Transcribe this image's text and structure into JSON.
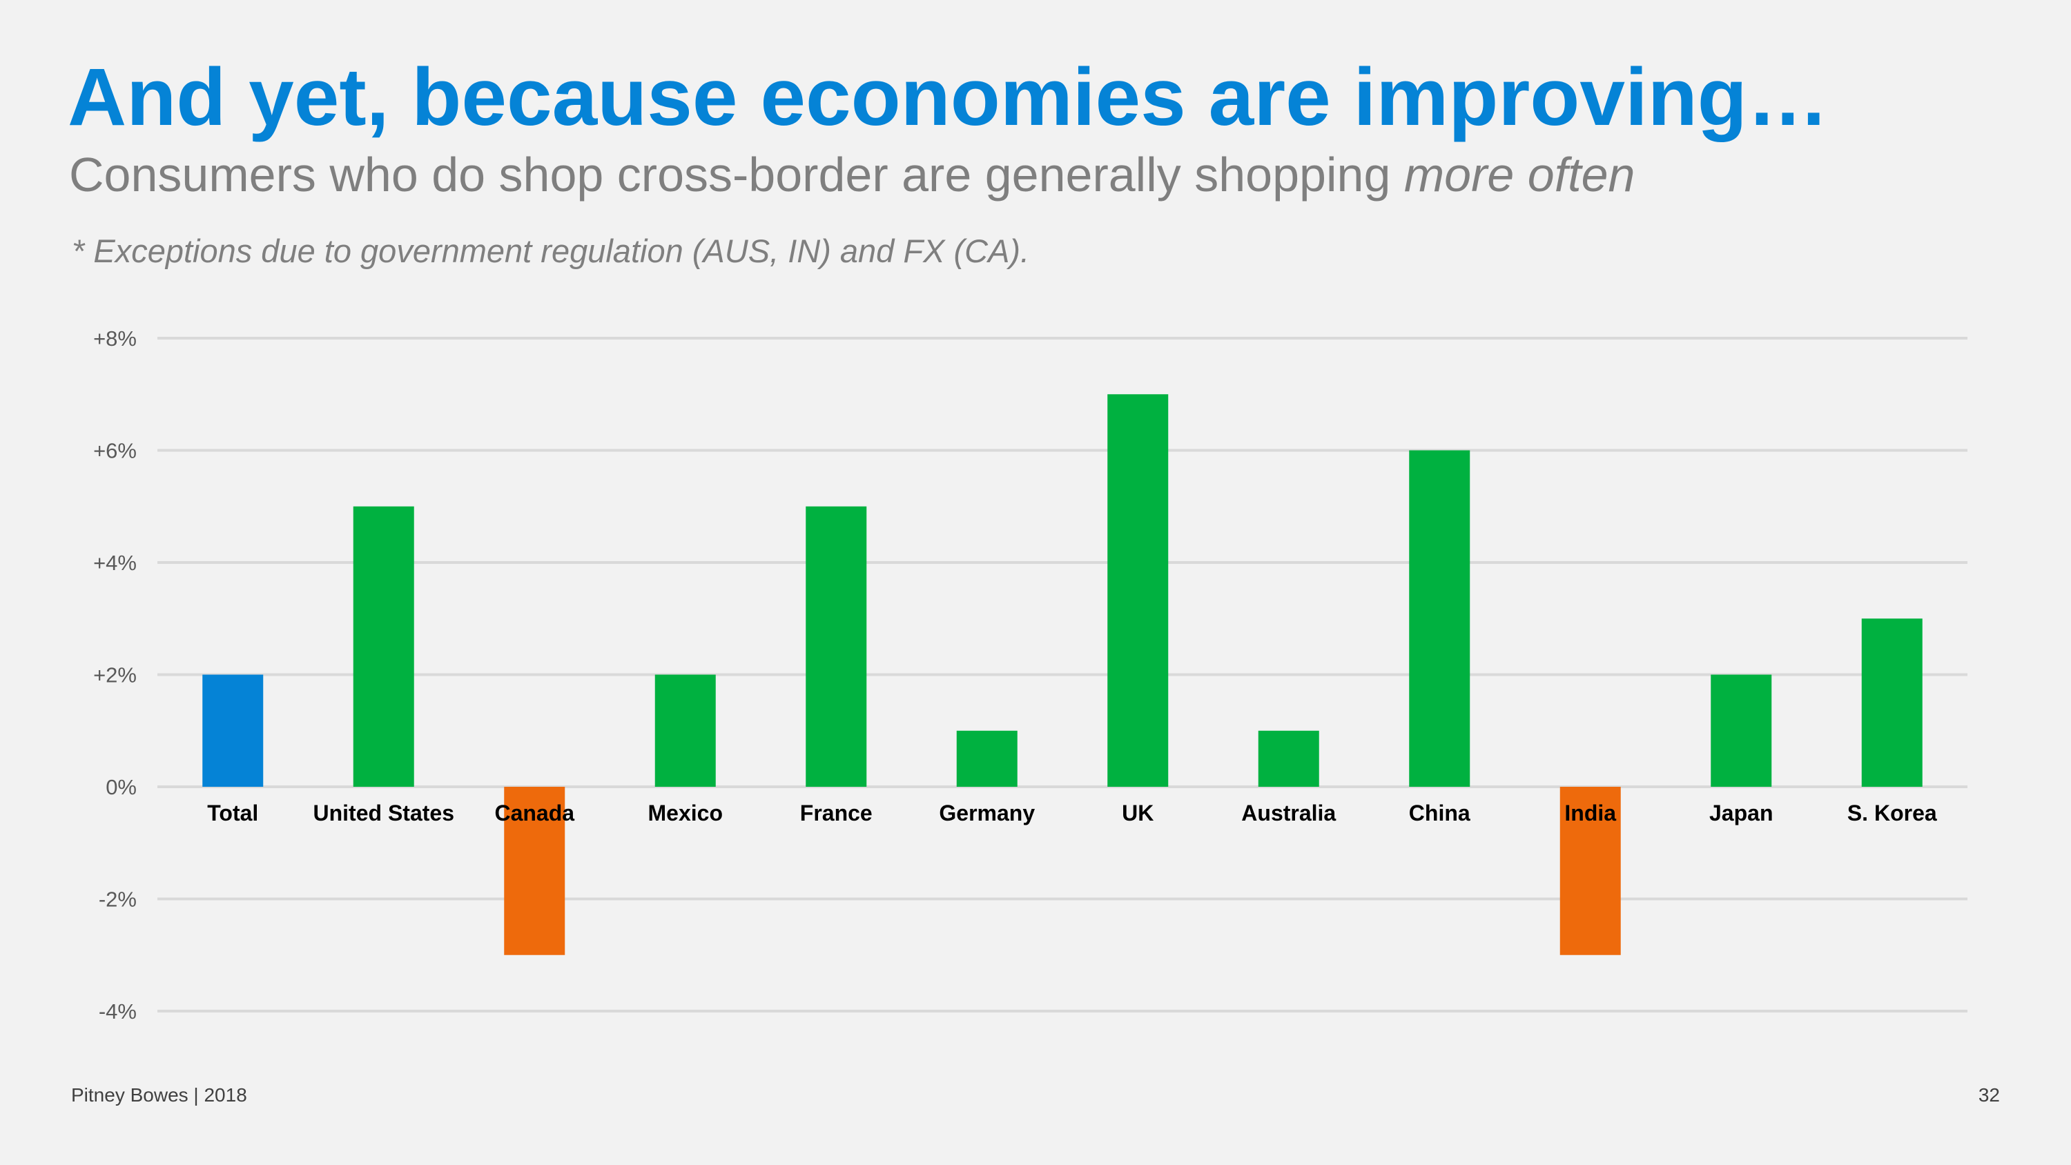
{
  "slide": {
    "title": "And yet, because economies are improving…",
    "subtitle_main": "Consumers who do shop cross-border are generally shopping ",
    "subtitle_emphasis": "more often",
    "note": "* Exceptions due to government regulation (AUS, IN) and FX (CA).",
    "footer_left": "Pitney Bowes | 2018",
    "page_number": "32"
  },
  "colors": {
    "title": "#0583d6",
    "total_bar": "#0583d6",
    "positive_bar": "#00b140",
    "negative_bar": "#ee6a0c",
    "gridline": "#d9d9d9",
    "axis_text": "#595959"
  },
  "chart_data": {
    "type": "bar",
    "categories": [
      "Total",
      "United States",
      "Canada",
      "Mexico",
      "France",
      "Germany",
      "UK",
      "Australia",
      "China",
      "India",
      "Japan",
      "S. Korea"
    ],
    "values": [
      2,
      5,
      -3,
      2,
      5,
      1,
      7,
      1,
      6,
      -3,
      2,
      3
    ],
    "ylim": [
      -4,
      8
    ],
    "yticks": [
      8,
      6,
      4,
      2,
      0,
      -2,
      -4
    ],
    "ytick_labels": [
      "+8%",
      "+6%",
      "+4%",
      "+2%",
      "0%",
      "-2%",
      "-4%"
    ],
    "grid": true,
    "legend": "none",
    "xlabel": "",
    "ylabel": ""
  }
}
